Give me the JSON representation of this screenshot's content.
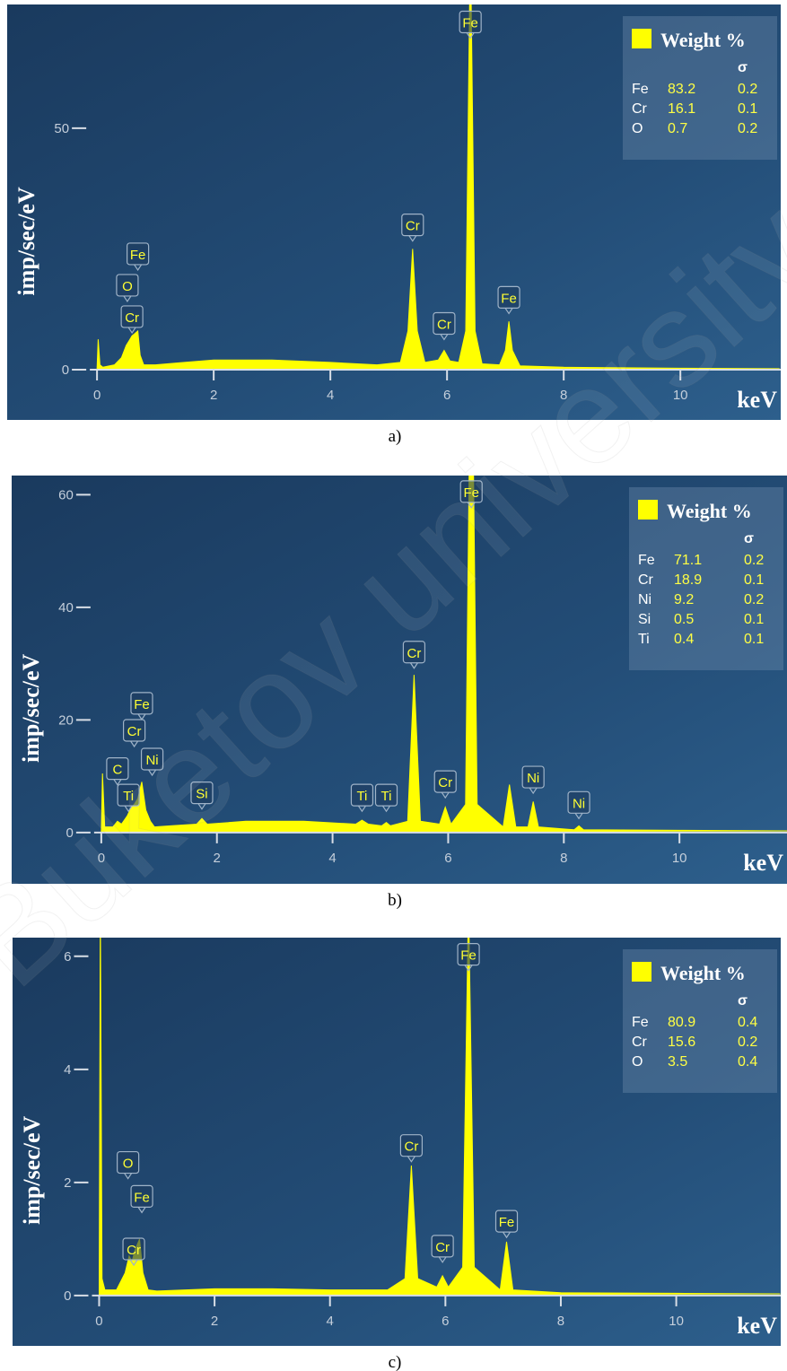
{
  "chart_data": [
    {
      "type": "area",
      "caption": "a)",
      "ylabel": "imp/sec/eV",
      "xlabel": "keV",
      "color": "#ffff00",
      "xlim": [
        -1.54,
        11.72
      ],
      "ylim": [
        -10.4,
        75.6
      ],
      "xticks": [
        0,
        2,
        4,
        6,
        8,
        10
      ],
      "yticks": [
        0,
        50
      ],
      "x": [
        0,
        0.02,
        0.05,
        0.1,
        0.3,
        0.42,
        0.5,
        0.55,
        0.6,
        0.65,
        0.7,
        0.74,
        0.8,
        1.0,
        1.5,
        2,
        3,
        4,
        4.8,
        5.2,
        5.33,
        5.41,
        5.49,
        5.62,
        5.85,
        5.95,
        6.05,
        6.2,
        6.32,
        6.4,
        6.48,
        6.6,
        6.9,
        7.0,
        7.06,
        7.12,
        7.25,
        8,
        10,
        11.7
      ],
      "values": [
        0,
        6.3,
        1,
        0.5,
        1,
        2.5,
        5,
        6,
        7,
        7.5,
        8,
        3,
        1,
        1,
        1.5,
        2,
        2,
        1.5,
        1,
        1.5,
        8,
        25,
        8,
        1.5,
        2,
        4,
        1.8,
        1.5,
        8,
        90,
        8,
        1.2,
        1,
        4,
        10,
        4,
        0.8,
        0.5,
        0.3,
        0.2
      ],
      "annotations": [
        {
          "text": "Fe",
          "x": 6.4,
          "y": 69
        },
        {
          "text": "Cr",
          "x": 5.41,
          "y": 27
        },
        {
          "text": "Cr",
          "x": 5.95,
          "y": 6.6
        },
        {
          "text": "Fe",
          "x": 7.06,
          "y": 12
        },
        {
          "text": "Fe",
          "x": 0.7,
          "y": 21
        },
        {
          "text": "O",
          "x": 0.52,
          "y": 14.5
        },
        {
          "text": "Cr",
          "x": 0.6,
          "y": 8
        }
      ],
      "legend": {
        "title": "Weight %",
        "sigma": "σ",
        "rows": [
          {
            "element": "Fe",
            "value": 83.2,
            "error": 0.2
          },
          {
            "element": "Cr",
            "value": 16.1,
            "error": 0.1
          },
          {
            "element": "O",
            "value": 0.7,
            "error": 0.2
          }
        ]
      }
    },
    {
      "type": "area",
      "caption": "b)",
      "ylabel": "imp/sec/eV",
      "xlabel": "keV",
      "color": "#ffff00",
      "xlim": [
        -1.55,
        11.86
      ],
      "ylim": [
        -9.1,
        63.4
      ],
      "xticks": [
        0,
        2,
        4,
        6,
        8,
        10
      ],
      "yticks": [
        0,
        20,
        40,
        60
      ],
      "x": [
        0,
        0.02,
        0.06,
        0.2,
        0.28,
        0.35,
        0.45,
        0.52,
        0.57,
        0.63,
        0.7,
        0.77,
        0.85,
        0.92,
        1.2,
        1.65,
        1.74,
        1.83,
        2.5,
        3.5,
        4.4,
        4.51,
        4.62,
        4.85,
        4.93,
        5.0,
        5.3,
        5.41,
        5.52,
        5.85,
        5.95,
        6.05,
        6.3,
        6.4,
        6.5,
        6.95,
        7.06,
        7.17,
        7.38,
        7.47,
        7.56,
        8.18,
        8.26,
        8.34,
        10,
        11.86
      ],
      "values": [
        0,
        10.5,
        1,
        1,
        2,
        1.5,
        3,
        4.5,
        5,
        6,
        9,
        4,
        2,
        1,
        1.2,
        1.5,
        2.5,
        1.5,
        2,
        2,
        1.5,
        2.2,
        1.5,
        1.2,
        1.8,
        1.2,
        2,
        28,
        2,
        1.5,
        4.5,
        1.5,
        5,
        100,
        5,
        1,
        8.5,
        1,
        1,
        5.5,
        1,
        0.5,
        1.2,
        0.5,
        0.4,
        0.3
      ],
      "annotations": [
        {
          "text": "Fe",
          "x": 6.4,
          "y": 58
        },
        {
          "text": "Cr",
          "x": 5.41,
          "y": 29.5
        },
        {
          "text": "Cr",
          "x": 5.95,
          "y": 6.5
        },
        {
          "text": "Ni",
          "x": 7.47,
          "y": 7.3
        },
        {
          "text": "Ni",
          "x": 8.26,
          "y": 2.8
        },
        {
          "text": "Ti",
          "x": 4.51,
          "y": 4.1
        },
        {
          "text": "Ti",
          "x": 4.93,
          "y": 4.1
        },
        {
          "text": "Si",
          "x": 1.74,
          "y": 4.5
        },
        {
          "text": "Ni",
          "x": 0.88,
          "y": 10.5
        },
        {
          "text": "Fe",
          "x": 0.7,
          "y": 20.4
        },
        {
          "text": "Cr",
          "x": 0.57,
          "y": 15.6
        },
        {
          "text": "C",
          "x": 0.28,
          "y": 8.8
        },
        {
          "text": "Ti",
          "x": 0.47,
          "y": 4.1
        }
      ],
      "legend": {
        "title": "Weight %",
        "sigma": "σ",
        "rows": [
          {
            "element": "Fe",
            "value": 71.1,
            "error": 0.2
          },
          {
            "element": "Cr",
            "value": 18.9,
            "error": 0.1
          },
          {
            "element": "Ni",
            "value": 9.2,
            "error": 0.2
          },
          {
            "element": "Si",
            "value": 0.5,
            "error": 0.1
          },
          {
            "element": "Ti",
            "value": 0.4,
            "error": 0.1
          }
        ]
      }
    },
    {
      "type": "area",
      "caption": "c)",
      "ylabel": "imp/sec/eV",
      "xlabel": "keV",
      "color": "#ffff00",
      "xlim": [
        -1.5,
        11.81
      ],
      "ylim": [
        -0.89,
        6.33
      ],
      "xticks": [
        0,
        2,
        4,
        6,
        8,
        10
      ],
      "yticks": [
        0,
        2,
        4,
        6
      ],
      "x": [
        0,
        0.02,
        0.05,
        0.1,
        0.3,
        0.45,
        0.52,
        0.57,
        0.62,
        0.7,
        0.76,
        0.85,
        1.0,
        2.0,
        3.0,
        4.0,
        5.0,
        5.3,
        5.41,
        5.52,
        5.85,
        5.95,
        6.05,
        6.3,
        6.4,
        6.5,
        6.95,
        7.06,
        7.17,
        8,
        10,
        11.8
      ],
      "values": [
        0,
        7,
        0.3,
        0.1,
        0.1,
        0.4,
        0.7,
        0.6,
        0.8,
        1.0,
        0.4,
        0.1,
        0.08,
        0.12,
        0.12,
        0.1,
        0.1,
        0.3,
        2.3,
        0.3,
        0.15,
        0.35,
        0.15,
        0.5,
        7,
        0.5,
        0.1,
        0.95,
        0.1,
        0.05,
        0.04,
        0.03
      ],
      "annotations": [
        {
          "text": "Fe",
          "x": 6.4,
          "y": 5.78
        },
        {
          "text": "Cr",
          "x": 5.41,
          "y": 2.4
        },
        {
          "text": "Cr",
          "x": 5.95,
          "y": 0.62
        },
        {
          "text": "Fe",
          "x": 7.06,
          "y": 1.06
        },
        {
          "text": "O",
          "x": 0.5,
          "y": 2.1
        },
        {
          "text": "Fe",
          "x": 0.74,
          "y": 1.5
        },
        {
          "text": "Cr",
          "x": 0.6,
          "y": 0.57
        }
      ],
      "legend": {
        "title": "Weight %",
        "sigma": "σ",
        "rows": [
          {
            "element": "Fe",
            "value": 80.9,
            "error": 0.4
          },
          {
            "element": "Cr",
            "value": 15.6,
            "error": 0.2
          },
          {
            "element": "O",
            "value": 3.5,
            "error": 0.4
          }
        ]
      }
    }
  ],
  "watermark": "Buketov university"
}
